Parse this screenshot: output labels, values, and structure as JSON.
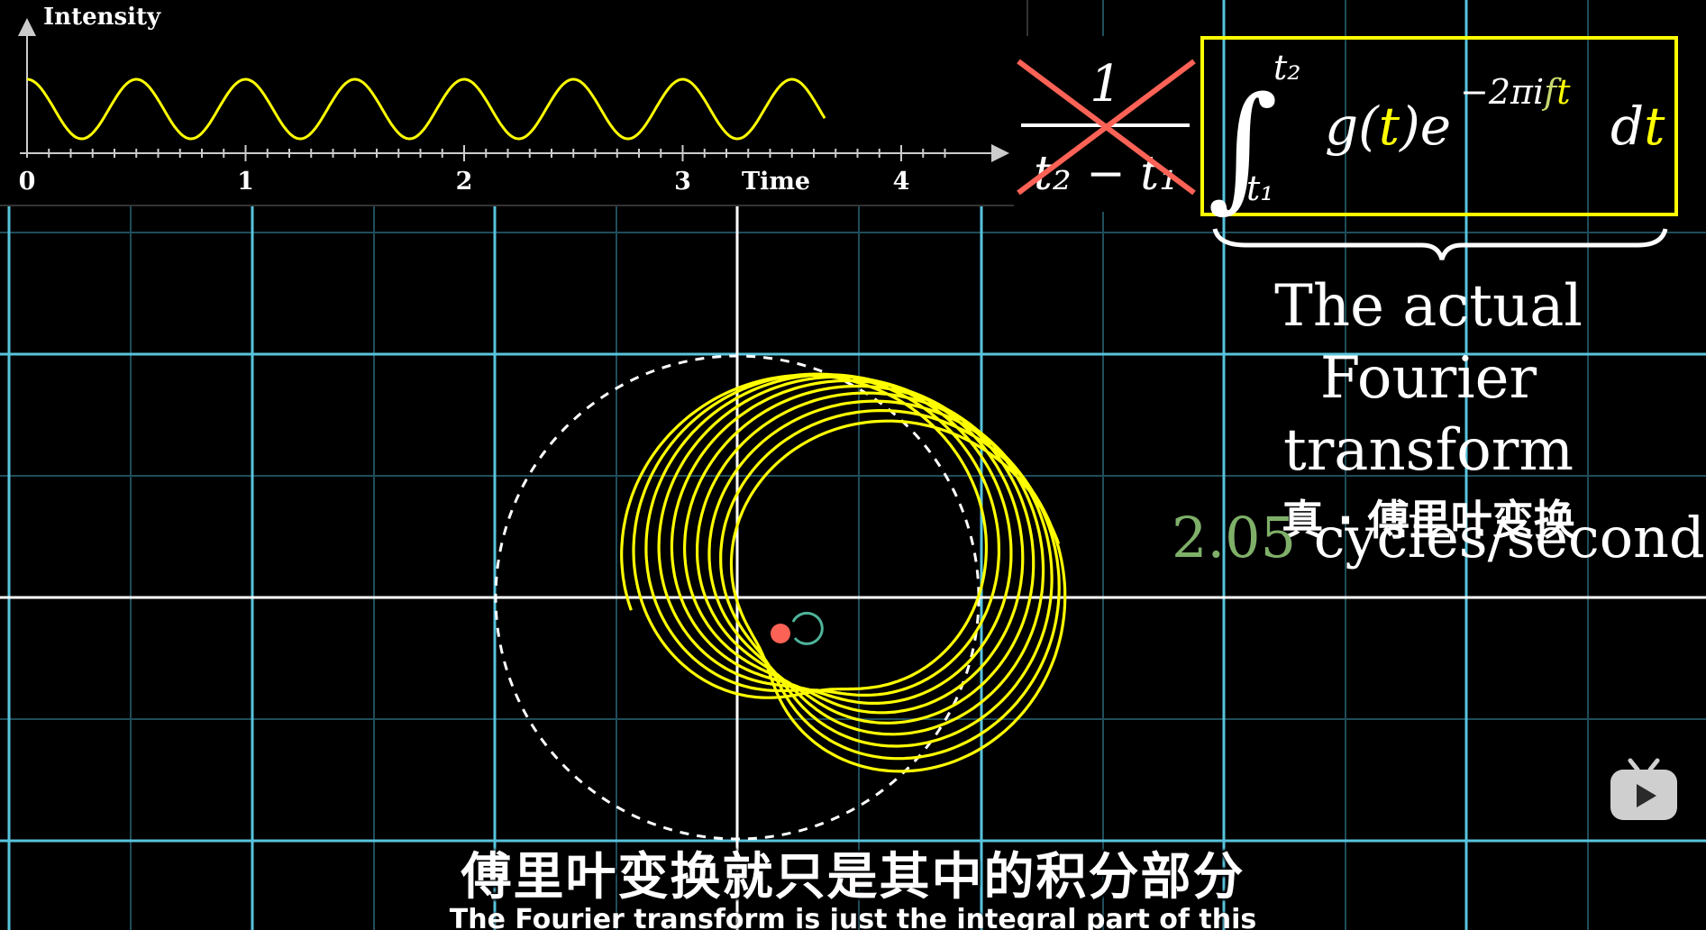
{
  "plot": {
    "y_axis_label": "Intensity",
    "x_axis_label": "Time",
    "x_ticks": [
      "0",
      "1",
      "2",
      "3",
      "4"
    ],
    "signal_frequency_hz": 2.0,
    "signal_color": "#ffff00"
  },
  "formula": {
    "numerator": "1",
    "denominator": "t₂ − t₁",
    "crossed_out_color": "#fc6255",
    "box_color": "#ffff00",
    "integrand": "g(t)e^{−2πift}dt",
    "lower_limit": "t₁",
    "upper_limit": "t₂"
  },
  "annotation": {
    "line1": "The actual",
    "line2": "Fourier transform",
    "line3_cn": "真 · 傅里叶变换"
  },
  "frequency": {
    "value": "2.05",
    "unit": "cycles/second",
    "value_color": "#7fb069"
  },
  "subtitles": {
    "chinese": "傅里叶变换就只是其中的积分部分",
    "english": "The Fourier transform is just the integral part of this"
  },
  "colors": {
    "background": "#000000",
    "grid_major": "#58c4dd",
    "center_of_mass": "#fc6255",
    "winding_graph": "#ffff00"
  },
  "icons": {
    "player_logo": "bilibili-tv-icon"
  }
}
